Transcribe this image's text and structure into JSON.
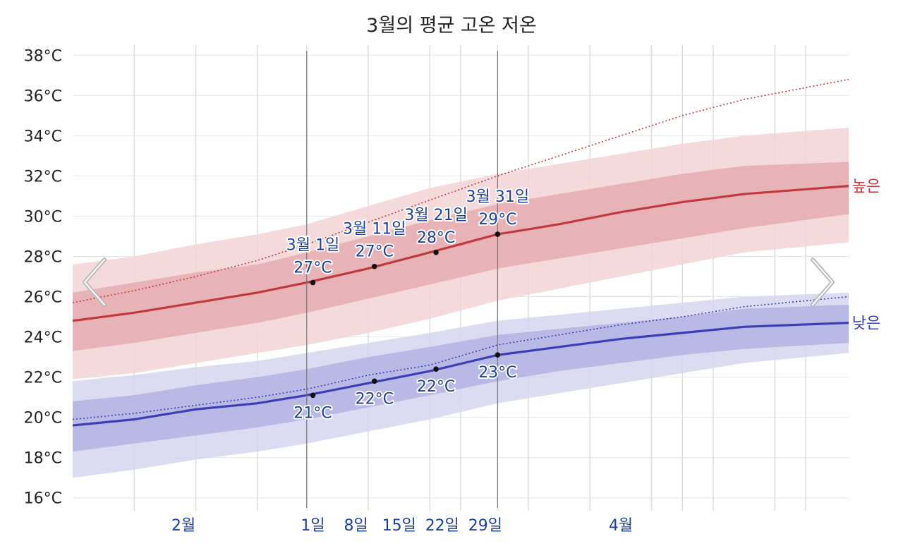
{
  "chart_data": {
    "type": "line",
    "title": "3월의 평균 고온 저온",
    "ylim": [
      15.5,
      38.5
    ],
    "y_ticks": [
      {
        "value": 16,
        "label": "16°C"
      },
      {
        "value": 18,
        "label": "18°C"
      },
      {
        "value": 20,
        "label": "20°C"
      },
      {
        "value": 22,
        "label": "22°C"
      },
      {
        "value": 24,
        "label": "24°C"
      },
      {
        "value": 26,
        "label": "26°C"
      },
      {
        "value": 28,
        "label": "28°C"
      },
      {
        "value": 30,
        "label": "30°C"
      },
      {
        "value": 32,
        "label": "32°C"
      },
      {
        "value": 34,
        "label": "34°C"
      },
      {
        "value": 36,
        "label": "36°C"
      },
      {
        "value": 38,
        "label": "38°C"
      }
    ],
    "x_day_range": [
      -38,
      88
    ],
    "x_ticks": [
      {
        "day": -20,
        "label": "2월"
      },
      {
        "day": 1,
        "label": "1일"
      },
      {
        "day": 8,
        "label": "8일"
      },
      {
        "day": 15,
        "label": "15일"
      },
      {
        "day": 22,
        "label": "22일"
      },
      {
        "day": 29,
        "label": "29일"
      },
      {
        "day": 51,
        "label": "4월"
      }
    ],
    "month_gridlines_day": [
      -28,
      0,
      31,
      61
    ],
    "week_gridlines_day": [
      -18,
      -8,
      10,
      20,
      25,
      36,
      46,
      56,
      66,
      76,
      81
    ],
    "month_boundary_lines_day": [
      0,
      31
    ],
    "grid": true,
    "colors": {
      "high": "#c0393e",
      "high_band_inner": "#e3a3a7",
      "high_band_outer": "#f2d3d5",
      "low": "#3b3fb5",
      "low_band_inner": "#a9abe0",
      "low_band_outer": "#d5d6f0",
      "label_text": "#1b3f9c",
      "tick_label": "#1b3f9c",
      "y_label": "#222222"
    },
    "series": [
      {
        "name": "높은",
        "x_day": [
          -38,
          -28,
          -18,
          -8,
          0,
          10,
          20,
          31,
          41,
          51,
          61,
          71,
          88
        ],
        "mean": [
          24.8,
          25.2,
          25.7,
          26.2,
          26.7,
          27.4,
          28.2,
          29.1,
          29.6,
          30.2,
          30.7,
          31.1,
          31.5
        ],
        "p25": [
          23.3,
          23.7,
          24.2,
          24.7,
          25.2,
          25.9,
          26.6,
          27.4,
          27.9,
          28.4,
          28.9,
          29.4,
          30.1
        ],
        "p75": [
          26.2,
          26.7,
          27.2,
          27.6,
          28.2,
          29.0,
          29.8,
          30.6,
          31.1,
          31.6,
          32.1,
          32.5,
          32.7
        ],
        "p10": [
          21.9,
          22.2,
          22.7,
          23.2,
          23.6,
          24.2,
          24.9,
          25.8,
          26.4,
          27.0,
          27.6,
          28.2,
          28.7
        ],
        "p90": [
          27.6,
          28.0,
          28.6,
          29.1,
          29.6,
          30.5,
          31.4,
          32.1,
          32.6,
          33.1,
          33.6,
          34.0,
          34.4
        ],
        "record": [
          25.7,
          26.3,
          27.0,
          27.8,
          28.6,
          29.7,
          30.8,
          32.0,
          33.0,
          34.0,
          35.0,
          35.8,
          36.8
        ]
      },
      {
        "name": "낮은",
        "x_day": [
          -38,
          -28,
          -18,
          -8,
          0,
          10,
          20,
          31,
          41,
          51,
          61,
          71,
          88
        ],
        "mean": [
          19.6,
          19.9,
          20.4,
          20.7,
          21.1,
          21.7,
          22.3,
          23.1,
          23.5,
          23.9,
          24.2,
          24.5,
          24.7
        ],
        "p25": [
          18.3,
          18.7,
          19.1,
          19.5,
          19.9,
          20.5,
          21.1,
          21.8,
          22.3,
          22.7,
          23.1,
          23.4,
          23.7
        ],
        "p75": [
          20.8,
          21.1,
          21.6,
          22.0,
          22.4,
          23.0,
          23.5,
          24.1,
          24.4,
          24.7,
          25.0,
          25.4,
          25.6
        ],
        "p10": [
          17.0,
          17.4,
          17.9,
          18.3,
          18.7,
          19.3,
          19.9,
          20.7,
          21.2,
          21.7,
          22.2,
          22.7,
          23.2
        ],
        "p90": [
          21.8,
          22.1,
          22.5,
          22.8,
          23.2,
          23.7,
          24.2,
          24.8,
          25.1,
          25.4,
          25.7,
          26.0,
          26.2
        ],
        "record": [
          19.9,
          20.2,
          20.6,
          21.0,
          21.4,
          22.1,
          22.6,
          23.6,
          24.1,
          24.6,
          25.0,
          25.5,
          26.0
        ]
      }
    ],
    "annotations": [
      {
        "series": "높은",
        "day": 1,
        "value": 26.7,
        "date": "3월 1일",
        "temp": "27°C"
      },
      {
        "series": "높은",
        "day": 11,
        "value": 27.5,
        "date": "3월 11일",
        "temp": "27°C"
      },
      {
        "series": "높은",
        "day": 21,
        "value": 28.2,
        "date": "3월 21일",
        "temp": "28°C"
      },
      {
        "series": "높은",
        "day": 31,
        "value": 29.1,
        "date": "3월 31일",
        "temp": "29°C"
      },
      {
        "series": "낮은",
        "day": 1,
        "value": 21.1,
        "temp": "21°C"
      },
      {
        "series": "낮은",
        "day": 11,
        "value": 21.8,
        "temp": "22°C"
      },
      {
        "series": "낮은",
        "day": 21,
        "value": 22.4,
        "temp": "22°C"
      },
      {
        "series": "낮은",
        "day": 31,
        "value": 23.1,
        "temp": "23°C"
      }
    ]
  },
  "nav": {
    "prev_icon": "chevron-left-icon",
    "next_icon": "chevron-right-icon"
  }
}
